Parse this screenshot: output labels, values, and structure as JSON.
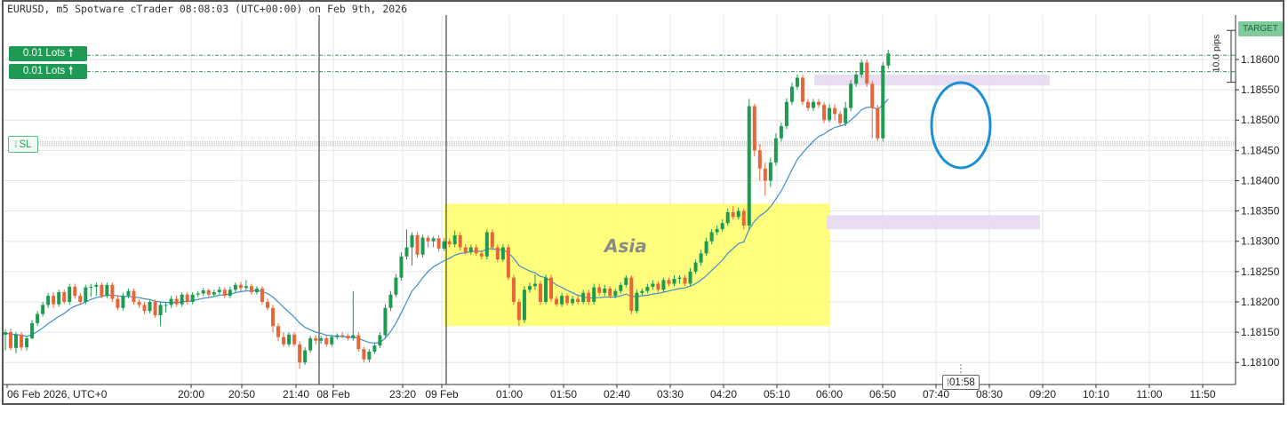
{
  "window": {
    "title": "EURUSD, m5 Spotware cTrader 08:08:03 (UTC+00:00) on Feb 9th, 2026"
  },
  "trade_tags": {
    "lot_upper": "0.01 Lots",
    "lot_lower": "0.01 Lots",
    "arrow_glyph": "🠕",
    "sl_label": "SL",
    "target_label": "TARGET",
    "pips_label": "10.0 pips",
    "countdown": "01:58"
  },
  "annotation": {
    "session_label": "Asia",
    "session_color": "#ffff66",
    "zone_color": "#e6d9ef",
    "circle_color": "#1a8fd6"
  },
  "colors": {
    "bull": "#1e9a53",
    "bear": "#e8663a",
    "ma": "#3b8ed0",
    "grid": "#e4e4e4"
  },
  "chart_data": {
    "type": "candlestick",
    "symbol": "EURUSD",
    "timeframe": "m5",
    "y_ticks": [
      "1.18600",
      "1.18550",
      "1.18500",
      "1.18450",
      "1.18400",
      "1.18350",
      "1.18300",
      "1.18250",
      "1.18200",
      "1.18150",
      "1.18100"
    ],
    "ylim": [
      1.1807,
      1.1864
    ],
    "x_ticks": [
      "06 Feb 2026, UTC+0",
      "20:00",
      "20:50",
      "21:40",
      "08 Feb",
      "23:20",
      "09 Feb",
      "01:00",
      "01:50",
      "02:40",
      "03:30",
      "04:20",
      "05:10",
      "06:00",
      "06:50",
      "07:40",
      "08:30",
      "09:20",
      "10:10",
      "11:00",
      "11:50"
    ],
    "levels": {
      "lot_upper": 1.18607,
      "lot_lower": 1.1858,
      "stop_loss": 1.18461
    },
    "session_box": {
      "label": "Asia",
      "price_high": 1.18362,
      "price_low": 1.1816,
      "start_candle": 73,
      "end_candle": 137
    },
    "zones": [
      {
        "price_high": 1.18575,
        "price_low": 1.18557,
        "start_candle": 136,
        "end_candle": 177
      },
      {
        "price_high": 1.18343,
        "price_low": 1.1832,
        "start_candle": 137,
        "end_candle": 171
      }
    ],
    "candles": [
      [
        1.18146,
        1.1815,
        1.18155,
        1.1812
      ],
      [
        1.1815,
        1.18124,
        1.18156,
        1.1812
      ],
      [
        1.18124,
        1.18146,
        1.1815,
        1.18115
      ],
      [
        1.18146,
        1.18125,
        1.1815,
        1.1812
      ],
      [
        1.18125,
        1.1814,
        1.18144,
        1.1812
      ],
      [
        1.1814,
        1.18165,
        1.1817,
        1.18138
      ],
      [
        1.18165,
        1.1818,
        1.18185,
        1.1816
      ],
      [
        1.1818,
        1.18195,
        1.182,
        1.18176
      ],
      [
        1.18195,
        1.1821,
        1.18215,
        1.1819
      ],
      [
        1.1821,
        1.18196,
        1.18216,
        1.1819
      ],
      [
        1.18196,
        1.18216,
        1.1822,
        1.18192
      ],
      [
        1.18216,
        1.182,
        1.1822,
        1.18196
      ],
      [
        1.182,
        1.18225,
        1.1823,
        1.18195
      ],
      [
        1.18225,
        1.1821,
        1.1823,
        1.18205
      ],
      [
        1.1821,
        1.182,
        1.18215,
        1.18196
      ],
      [
        1.182,
        1.18224,
        1.18228,
        1.18196
      ],
      [
        1.18224,
        1.18225,
        1.1823,
        1.18208
      ],
      [
        1.18225,
        1.18228,
        1.18232,
        1.1821
      ],
      [
        1.18228,
        1.1821,
        1.18232,
        1.18206
      ],
      [
        1.1821,
        1.18228,
        1.18232,
        1.18206
      ],
      [
        1.18228,
        1.18205,
        1.18232,
        1.182
      ],
      [
        1.18205,
        1.1819,
        1.1821,
        1.18186
      ],
      [
        1.1819,
        1.1821,
        1.18215,
        1.18186
      ],
      [
        1.1821,
        1.18218,
        1.18222,
        1.18206
      ],
      [
        1.18218,
        1.182,
        1.18222,
        1.18196
      ],
      [
        1.182,
        1.18195,
        1.18204,
        1.1819
      ],
      [
        1.18195,
        1.18185,
        1.182,
        1.1818
      ],
      [
        1.18185,
        1.182,
        1.18204,
        1.18181
      ],
      [
        1.182,
        1.18178,
        1.18204,
        1.18174
      ],
      [
        1.18178,
        1.18195,
        1.182,
        1.1816
      ],
      [
        1.18195,
        1.18195,
        1.182,
        1.18182
      ],
      [
        1.18195,
        1.18205,
        1.1821,
        1.1819
      ],
      [
        1.18205,
        1.18196,
        1.1821,
        1.18192
      ],
      [
        1.18196,
        1.18212,
        1.18216,
        1.18192
      ],
      [
        1.18212,
        1.182,
        1.18216,
        1.18196
      ],
      [
        1.182,
        1.18212,
        1.18216,
        1.18196
      ],
      [
        1.18212,
        1.18214,
        1.18218,
        1.18208
      ],
      [
        1.18214,
        1.18219,
        1.18223,
        1.1821
      ],
      [
        1.18219,
        1.18212,
        1.18222,
        1.18208
      ],
      [
        1.18212,
        1.18216,
        1.1822,
        1.18208
      ],
      [
        1.18216,
        1.1822,
        1.18225,
        1.18212
      ],
      [
        1.1822,
        1.1821,
        1.18224,
        1.18206
      ],
      [
        1.1821,
        1.1822,
        1.18225,
        1.18206
      ],
      [
        1.1822,
        1.18228,
        1.18232,
        1.18216
      ],
      [
        1.18228,
        1.18223,
        1.18233,
        1.18218
      ],
      [
        1.18223,
        1.18226,
        1.18236,
        1.18219
      ],
      [
        1.18226,
        1.18216,
        1.1823,
        1.18212
      ],
      [
        1.18216,
        1.18222,
        1.18226,
        1.18212
      ],
      [
        1.18222,
        1.182,
        1.18226,
        1.18196
      ],
      [
        1.182,
        1.1819,
        1.18205,
        1.18186
      ],
      [
        1.1819,
        1.1816,
        1.18195,
        1.1815
      ],
      [
        1.1816,
        1.18142,
        1.18165,
        1.18135
      ],
      [
        1.18142,
        1.1813,
        1.1815,
        1.18126
      ],
      [
        1.1813,
        1.18146,
        1.1815,
        1.18126
      ],
      [
        1.18146,
        1.1813,
        1.1815,
        1.18126
      ],
      [
        1.1813,
        1.181,
        1.18135,
        1.1809
      ],
      [
        1.181,
        1.1812,
        1.18125,
        1.18096
      ],
      [
        1.1812,
        1.1814,
        1.18144,
        1.18116
      ],
      [
        1.1814,
        1.18136,
        1.18145,
        1.1813
      ],
      [
        1.18136,
        1.1814,
        1.18144,
        1.18131
      ],
      [
        1.1814,
        1.1813,
        1.18144,
        1.18126
      ],
      [
        1.1813,
        1.18142,
        1.18146,
        1.18126
      ],
      [
        1.18142,
        1.18145,
        1.18148,
        1.18138
      ],
      [
        1.18145,
        1.18144,
        1.1815,
        1.1814
      ],
      [
        1.18144,
        1.1814,
        1.18148,
        1.18136
      ],
      [
        1.1814,
        1.18145,
        1.18218,
        1.18136
      ],
      [
        1.18145,
        1.18122,
        1.1815,
        1.18118
      ],
      [
        1.18122,
        1.18105,
        1.18126,
        1.181
      ],
      [
        1.18105,
        1.18118,
        1.18122,
        1.181
      ],
      [
        1.18118,
        1.18128,
        1.18132,
        1.18114
      ],
      [
        1.18128,
        1.18145,
        1.1815,
        1.18124
      ],
      [
        1.18145,
        1.1819,
        1.18196,
        1.1814
      ],
      [
        1.1819,
        1.18212,
        1.18218,
        1.18185
      ],
      [
        1.18212,
        1.1824,
        1.18246,
        1.18208
      ],
      [
        1.1824,
        1.18275,
        1.18282,
        1.18235
      ],
      [
        1.18275,
        1.1829,
        1.1832,
        1.1827
      ],
      [
        1.1829,
        1.1831,
        1.18315,
        1.1826
      ],
      [
        1.1831,
        1.18278,
        1.18315,
        1.18273
      ],
      [
        1.18278,
        1.18306,
        1.18311,
        1.18273
      ],
      [
        1.18306,
        1.183,
        1.1831,
        1.1829
      ],
      [
        1.183,
        1.18305,
        1.18308,
        1.1829
      ],
      [
        1.18305,
        1.18288,
        1.1831,
        1.18283
      ],
      [
        1.18288,
        1.183,
        1.18305,
        1.18284
      ],
      [
        1.183,
        1.18295,
        1.18305,
        1.1829
      ],
      [
        1.18295,
        1.1831,
        1.18318,
        1.1829
      ],
      [
        1.1831,
        1.1829,
        1.18315,
        1.18285
      ],
      [
        1.1829,
        1.18282,
        1.18295,
        1.18278
      ],
      [
        1.18282,
        1.1829,
        1.18295,
        1.18278
      ],
      [
        1.1829,
        1.1828,
        1.18295,
        1.18276
      ],
      [
        1.1828,
        1.18275,
        1.18285,
        1.1827
      ],
      [
        1.18275,
        1.18315,
        1.1832,
        1.1827
      ],
      [
        1.18315,
        1.1829,
        1.1832,
        1.18285
      ],
      [
        1.1829,
        1.1827,
        1.18295,
        1.18266
      ],
      [
        1.1827,
        1.1829,
        1.18295,
        1.18266
      ],
      [
        1.1829,
        1.1824,
        1.18295,
        1.18236
      ],
      [
        1.1824,
        1.182,
        1.18245,
        1.18195
      ],
      [
        1.182,
        1.1817,
        1.18205,
        1.1816
      ],
      [
        1.1817,
        1.1822,
        1.18226,
        1.18165
      ],
      [
        1.1822,
        1.18226,
        1.18232,
        1.18215
      ],
      [
        1.18226,
        1.1823,
        1.18245,
        1.1822
      ],
      [
        1.1823,
        1.182,
        1.18235,
        1.18195
      ],
      [
        1.182,
        1.1824,
        1.18245,
        1.18196
      ],
      [
        1.1824,
        1.18205,
        1.18245,
        1.182
      ],
      [
        1.18205,
        1.18196,
        1.1821,
        1.18192
      ],
      [
        1.18196,
        1.1821,
        1.18215,
        1.18192
      ],
      [
        1.1821,
        1.18198,
        1.18214,
        1.18194
      ],
      [
        1.18198,
        1.18205,
        1.1821,
        1.18194
      ],
      [
        1.18205,
        1.182,
        1.1821,
        1.18196
      ],
      [
        1.182,
        1.18215,
        1.1822,
        1.18196
      ],
      [
        1.18215,
        1.182,
        1.1822,
        1.18195
      ],
      [
        1.182,
        1.18224,
        1.1823,
        1.18196
      ],
      [
        1.18224,
        1.18215,
        1.1823,
        1.1821
      ],
      [
        1.18215,
        1.18222,
        1.18228,
        1.1821
      ],
      [
        1.18222,
        1.1821,
        1.18226,
        1.18206
      ],
      [
        1.1821,
        1.18218,
        1.18222,
        1.18206
      ],
      [
        1.18218,
        1.18228,
        1.18232,
        1.18214
      ],
      [
        1.18228,
        1.1824,
        1.18244,
        1.18224
      ],
      [
        1.1824,
        1.18185,
        1.18244,
        1.1818
      ],
      [
        1.18185,
        1.18215,
        1.1822,
        1.18181
      ],
      [
        1.18215,
        1.18218,
        1.18222,
        1.1821
      ],
      [
        1.18218,
        1.18225,
        1.1823,
        1.18214
      ],
      [
        1.18225,
        1.1823,
        1.18236,
        1.1822
      ],
      [
        1.1823,
        1.1822,
        1.18234,
        1.18216
      ],
      [
        1.1822,
        1.18236,
        1.1824,
        1.18216
      ],
      [
        1.18236,
        1.1823,
        1.1824,
        1.18226
      ],
      [
        1.1823,
        1.18238,
        1.18244,
        1.18226
      ],
      [
        1.18238,
        1.1824,
        1.18244,
        1.1823
      ],
      [
        1.1824,
        1.1823,
        1.18244,
        1.18226
      ],
      [
        1.1823,
        1.1825,
        1.18256,
        1.18226
      ],
      [
        1.1825,
        1.18265,
        1.1827,
        1.18246
      ],
      [
        1.18265,
        1.1828,
        1.18286,
        1.1826
      ],
      [
        1.1828,
        1.183,
        1.18306,
        1.18276
      ],
      [
        1.183,
        1.18315,
        1.1832,
        1.18295
      ],
      [
        1.18315,
        1.1832,
        1.18326,
        1.1831
      ],
      [
        1.1832,
        1.1833,
        1.18336,
        1.18316
      ],
      [
        1.1833,
        1.18348,
        1.18354,
        1.18326
      ],
      [
        1.18348,
        1.1834,
        1.18358,
        1.18336
      ],
      [
        1.1834,
        1.1835,
        1.18356,
        1.18336
      ],
      [
        1.1835,
        1.18326,
        1.18354,
        1.1832
      ],
      [
        1.18326,
        1.18523,
        1.18535,
        1.1832
      ],
      [
        1.18523,
        1.1845,
        1.18527,
        1.1844
      ],
      [
        1.1845,
        1.1842,
        1.1846,
        1.184
      ],
      [
        1.1842,
        1.184,
        1.1843,
        1.18375
      ],
      [
        1.184,
        1.1843,
        1.18438,
        1.1839
      ],
      [
        1.1843,
        1.1847,
        1.18478,
        1.18425
      ],
      [
        1.1847,
        1.1849,
        1.18496,
        1.18465
      ],
      [
        1.1849,
        1.1853,
        1.18536,
        1.18485
      ],
      [
        1.1853,
        1.18555,
        1.18562,
        1.18525
      ],
      [
        1.18555,
        1.1857,
        1.18575,
        1.1855
      ],
      [
        1.1857,
        1.1853,
        1.18575,
        1.18525
      ],
      [
        1.1853,
        1.1852,
        1.18535,
        1.18515
      ],
      [
        1.1852,
        1.1853,
        1.18535,
        1.18515
      ],
      [
        1.1853,
        1.18525,
        1.18535,
        1.1852
      ],
      [
        1.18525,
        1.185,
        1.1853,
        1.18495
      ],
      [
        1.185,
        1.1852,
        1.18526,
        1.18496
      ],
      [
        1.1852,
        1.1851,
        1.18526,
        1.185
      ],
      [
        1.1851,
        1.18495,
        1.18515,
        1.1849
      ],
      [
        1.18495,
        1.1852,
        1.1853,
        1.1849
      ],
      [
        1.1852,
        1.1856,
        1.18566,
        1.18515
      ],
      [
        1.1856,
        1.18575,
        1.1858,
        1.18555
      ],
      [
        1.18575,
        1.18595,
        1.186,
        1.1857
      ],
      [
        1.18595,
        1.1856,
        1.186,
        1.18555
      ],
      [
        1.1856,
        1.1852,
        1.18565,
        1.1847
      ],
      [
        1.1852,
        1.1847,
        1.18525,
        1.18465
      ],
      [
        1.1847,
        1.1859,
        1.18596,
        1.18465
      ],
      [
        1.1859,
        1.1861,
        1.18616,
        1.18585
      ]
    ],
    "moving_average": [
      1.18148,
      1.18147,
      1.18146,
      1.18145,
      1.18143,
      1.18146,
      1.18151,
      1.18157,
      1.18164,
      1.1817,
      1.18176,
      1.18181,
      1.18188,
      1.18193,
      1.18196,
      1.182,
      1.18204,
      1.18207,
      1.18209,
      1.18211,
      1.18211,
      1.1821,
      1.18209,
      1.18209,
      1.18208,
      1.18207,
      1.18205,
      1.18204,
      1.18201,
      1.182,
      1.18199,
      1.18199,
      1.18199,
      1.182,
      1.18201,
      1.18202,
      1.18204,
      1.18206,
      1.18207,
      1.18209,
      1.18211,
      1.18212,
      1.18213,
      1.18215,
      1.18217,
      1.18218,
      1.18218,
      1.18219,
      1.18217,
      1.18214,
      1.18208,
      1.182,
      1.18191,
      1.18183,
      1.18175,
      1.18165,
      1.18158,
      1.18154,
      1.1815,
      1.18148,
      1.18145,
      1.18144,
      1.18143,
      1.18143,
      1.18142,
      1.18142,
      1.1814,
      1.18136,
      1.18133,
      1.18132,
      1.18133,
      1.1814,
      1.18151,
      1.18165,
      1.18182,
      1.182,
      1.18218,
      1.18228,
      1.1824,
      1.1825,
      1.18258,
      1.18263,
      1.18268,
      1.18272,
      1.18277,
      1.1828,
      1.18281,
      1.18283,
      1.18284,
      1.18283,
      1.18287,
      1.18288,
      1.18286,
      1.18286,
      1.18281,
      1.18272,
      1.1826,
      1.18255,
      1.18251,
      1.18248,
      1.18242,
      1.1824,
      1.18234,
      1.18228,
      1.18224,
      1.18219,
      1.18215,
      1.18211,
      1.18209,
      1.18206,
      1.18207,
      1.18207,
      1.18208,
      1.18208,
      1.18208,
      1.1821,
      1.18213,
      1.18209,
      1.18209,
      1.1821,
      1.18211,
      1.18213,
      1.18214,
      1.18216,
      1.18218,
      1.1822,
      1.18222,
      1.18223,
      1.18226,
      1.1823,
      1.18236,
      1.18243,
      1.18252,
      1.1826,
      1.18269,
      1.1828,
      1.18288,
      1.18296,
      1.18299,
      1.1832,
      1.18333,
      1.18342,
      1.18348,
      1.18357,
      1.1837,
      1.18383,
      1.184,
      1.18418,
      1.18435,
      1.18446,
      1.18456,
      1.18465,
      1.18473,
      1.18477,
      1.18483,
      1.18488,
      1.1849,
      1.18493,
      1.185,
      1.18508,
      1.18517,
      1.18521,
      1.18521,
      1.18518,
      1.18525,
      1.18535
    ]
  }
}
